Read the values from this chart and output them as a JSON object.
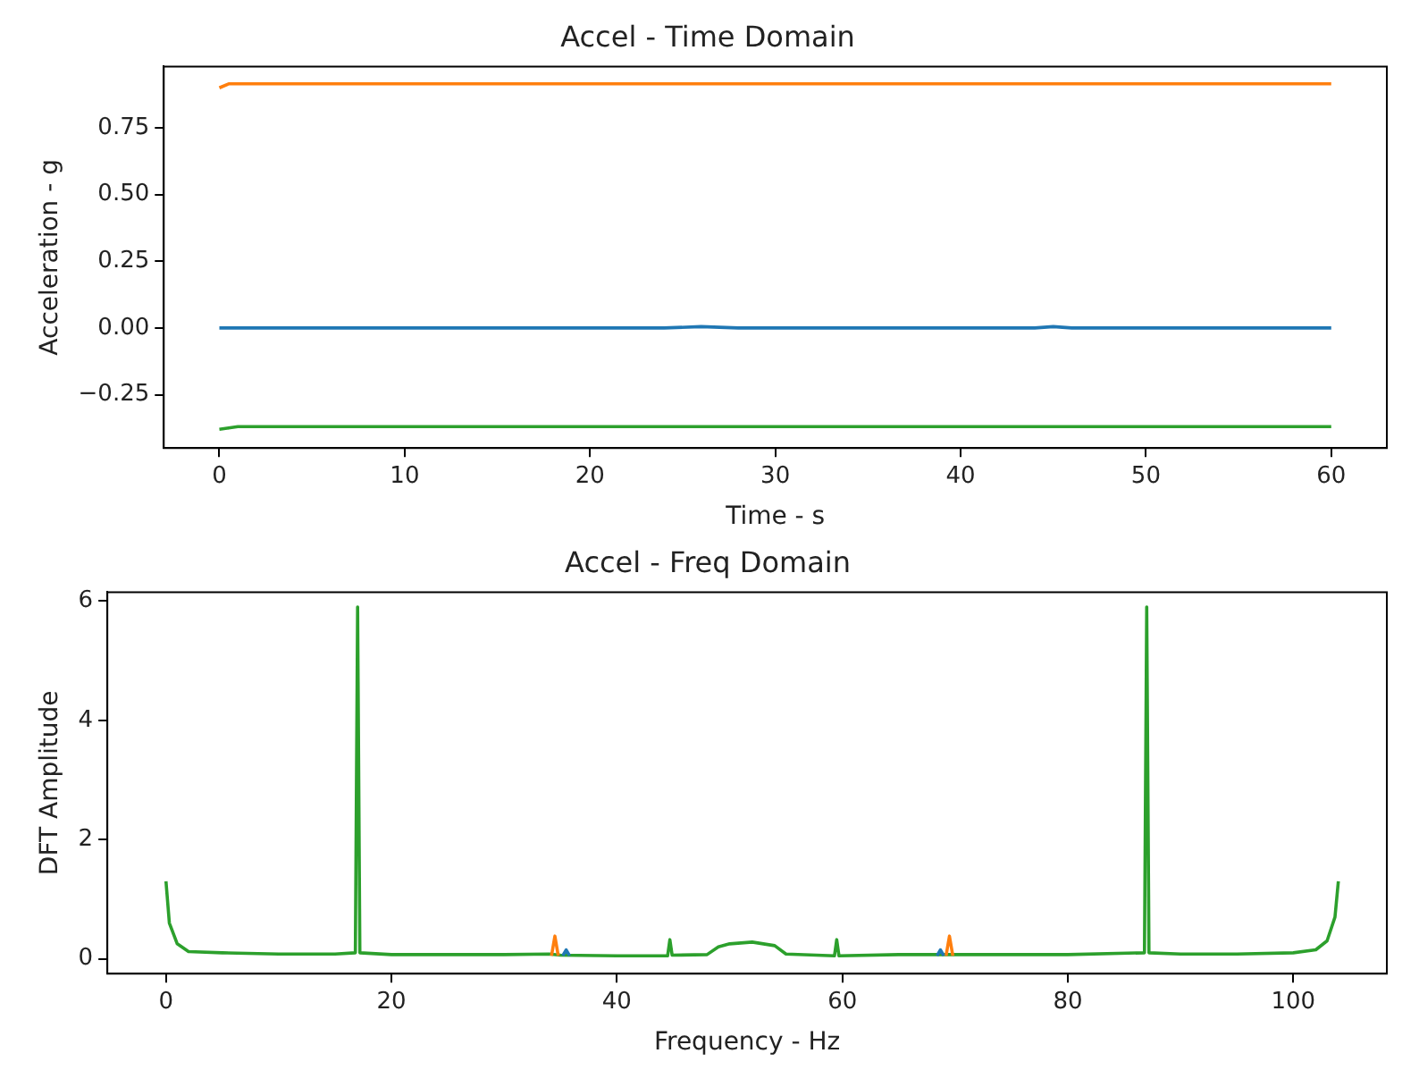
{
  "chart_data": [
    {
      "type": "line",
      "title": "Accel - Time Domain",
      "xlabel": "Time - s",
      "ylabel": "Acceleration - g",
      "xlim": [
        -3,
        63
      ],
      "xticks": [
        0,
        10,
        20,
        30,
        40,
        50,
        60
      ],
      "ylim": [
        -0.45,
        0.98
      ],
      "yticks": [
        {
          "value": -0.25,
          "label": "−0.25"
        },
        {
          "value": 0,
          "label": "0.00"
        },
        0.25,
        {
          "value": 0.5,
          "label": "0.50"
        },
        0.75
      ],
      "grid": false,
      "marker": "none",
      "series": [
        {
          "color": "#1f77b4",
          "x": [
            0,
            2,
            4,
            6,
            8,
            10,
            12,
            14,
            16,
            18,
            20,
            22,
            24,
            26,
            28,
            30,
            32,
            34,
            36,
            38,
            40,
            42,
            44,
            45,
            46,
            48,
            50,
            52,
            54,
            56,
            58,
            60
          ],
          "values": [
            0,
            0,
            0,
            0,
            0,
            0,
            0,
            0,
            0,
            0,
            0,
            0,
            0,
            0.005,
            0,
            0,
            0,
            0,
            0,
            0,
            0,
            0,
            0,
            0.005,
            0,
            0,
            0,
            0,
            0,
            0,
            0,
            0
          ]
        },
        {
          "color": "#ff7f0e",
          "x": [
            0,
            0.5,
            2,
            4,
            6,
            8,
            10,
            12,
            14,
            16,
            18,
            20,
            22,
            24,
            26,
            28,
            30,
            32,
            34,
            36,
            38,
            40,
            42,
            44,
            46,
            48,
            50,
            52,
            54,
            56,
            58,
            60
          ],
          "values": [
            0.9,
            0.915,
            0.915,
            0.915,
            0.915,
            0.915,
            0.915,
            0.915,
            0.915,
            0.915,
            0.915,
            0.915,
            0.915,
            0.915,
            0.915,
            0.915,
            0.915,
            0.915,
            0.915,
            0.915,
            0.915,
            0.915,
            0.915,
            0.915,
            0.915,
            0.915,
            0.915,
            0.915,
            0.915,
            0.915,
            0.915,
            0.915
          ]
        },
        {
          "color": "#2ca02c",
          "x": [
            0,
            0.5,
            1,
            2,
            4,
            6,
            8,
            10,
            12,
            14,
            16,
            18,
            20,
            22,
            24,
            26,
            28,
            30,
            32,
            34,
            36,
            38,
            40,
            42,
            44,
            46,
            48,
            50,
            52,
            54,
            56,
            58,
            60
          ],
          "values": [
            -0.38,
            -0.375,
            -0.37,
            -0.37,
            -0.37,
            -0.37,
            -0.37,
            -0.37,
            -0.37,
            -0.37,
            -0.37,
            -0.37,
            -0.37,
            -0.37,
            -0.37,
            -0.37,
            -0.37,
            -0.37,
            -0.37,
            -0.37,
            -0.37,
            -0.37,
            -0.37,
            -0.37,
            -0.37,
            -0.37,
            -0.37,
            -0.37,
            -0.37,
            -0.37,
            -0.37,
            -0.37,
            -0.37
          ]
        }
      ]
    },
    {
      "type": "line",
      "title": "Accel - Freq Domain",
      "xlabel": "Frequency - Hz",
      "ylabel": "DFT Amplitude",
      "xlim": [
        -5.2,
        108.3
      ],
      "xticks": [
        0,
        20,
        40,
        60,
        80,
        100
      ],
      "ylim": [
        -0.25,
        6.15
      ],
      "yticks": [
        0,
        2,
        4,
        6
      ],
      "grid": false,
      "marker": "none",
      "series": [
        {
          "color": "#1f77b4",
          "x": [
            35.2,
            35.5,
            35.8,
            null,
            68.4,
            68.7,
            69
          ],
          "values": [
            0.05,
            0.15,
            0.05,
            null,
            0.05,
            0.15,
            0.05
          ]
        },
        {
          "color": "#ff7f0e",
          "x": [
            34.2,
            34.5,
            34.8,
            null,
            69.2,
            69.5,
            69.8
          ],
          "values": [
            0.05,
            0.38,
            0.05,
            null,
            0.05,
            0.38,
            0.05
          ]
        },
        {
          "color": "#2ca02c",
          "x": [
            0,
            0.3,
            1,
            2,
            5,
            10,
            15,
            16.8,
            17,
            17.2,
            20,
            25,
            30,
            34,
            35,
            40,
            44.5,
            44.7,
            44.9,
            48,
            49,
            50,
            52,
            54,
            55,
            59.3,
            59.5,
            59.7,
            65,
            70,
            75,
            80,
            86.8,
            87,
            87.2,
            90,
            95,
            100,
            102,
            103,
            103.7,
            104
          ],
          "values": [
            1.3,
            0.6,
            0.25,
            0.12,
            0.1,
            0.08,
            0.08,
            0.1,
            5.9,
            0.1,
            0.07,
            0.07,
            0.07,
            0.08,
            0.06,
            0.05,
            0.05,
            0.32,
            0.06,
            0.07,
            0.2,
            0.25,
            0.28,
            0.22,
            0.08,
            0.05,
            0.32,
            0.05,
            0.07,
            0.07,
            0.07,
            0.07,
            0.1,
            5.9,
            0.1,
            0.08,
            0.08,
            0.1,
            0.15,
            0.3,
            0.7,
            1.3
          ]
        }
      ]
    }
  ]
}
